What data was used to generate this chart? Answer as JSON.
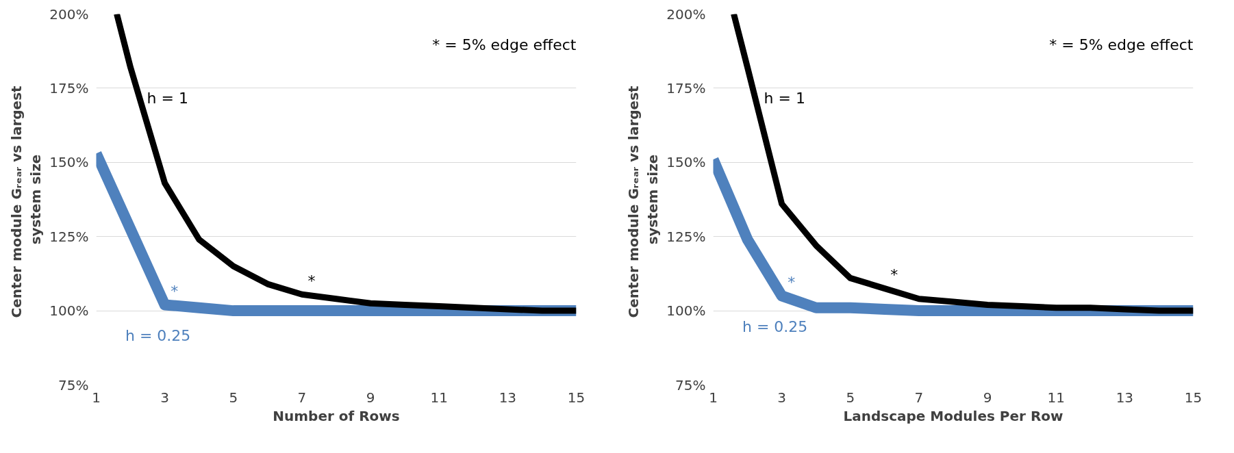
{
  "chart_data": [
    {
      "type": "line",
      "xlabel": "Number of Rows",
      "ylabel": "Center module Gᵣₑₐᵣ vs  largest\nsystem size",
      "xlim": [
        1,
        15
      ],
      "xticks": [
        1,
        3,
        5,
        7,
        9,
        11,
        13,
        15
      ],
      "ylim": [
        75,
        200
      ],
      "yticks": [
        {
          "value": 75,
          "label": "75%"
        },
        {
          "value": 100,
          "label": "100%"
        },
        {
          "value": 125,
          "label": "125%"
        },
        {
          "value": 150,
          "label": "150%"
        },
        {
          "value": 175,
          "label": "175%"
        },
        {
          "value": 200,
          "label": "200%"
        }
      ],
      "grid": "y",
      "line_style": "solid",
      "marker": "none",
      "series": [
        {
          "name": "h = 0.25",
          "color": "#4f81bd",
          "x": [
            1,
            2,
            3,
            4,
            5,
            6,
            7,
            8,
            9,
            10,
            11,
            12,
            13,
            14,
            15
          ],
          "values": [
            153,
            127.5,
            102,
            101,
            100,
            100,
            100,
            100,
            100,
            100,
            100,
            100,
            100,
            100,
            100
          ]
        },
        {
          "name": "h = 1",
          "color": "#000000",
          "x": [
            1.6,
            2,
            3,
            4,
            5,
            6,
            7,
            8,
            9,
            10,
            11,
            12,
            13,
            14,
            15
          ],
          "values": [
            200,
            182,
            143,
            124,
            115,
            109,
            105.5,
            104,
            102.5,
            102,
            101.5,
            101,
            100.5,
            100,
            100
          ]
        }
      ],
      "annotations": [
        "* = 5% edge effect",
        {
          "text": "*",
          "x": 3,
          "y": 102
        },
        {
          "text": "*",
          "x": 7,
          "y": 105.5
        }
      ]
    },
    {
      "type": "line",
      "xlabel": "Landscape Modules Per Row",
      "ylabel": "Center module  Gᵣₑₐᵣ vs largest\nsystem size",
      "xlim": [
        1,
        15
      ],
      "xticks": [
        1,
        3,
        5,
        7,
        9,
        11,
        13,
        15
      ],
      "ylim": [
        75,
        200
      ],
      "yticks": [
        {
          "value": 75,
          "label": "75%"
        },
        {
          "value": 100,
          "label": "100%"
        },
        {
          "value": 125,
          "label": "125%"
        },
        {
          "value": 150,
          "label": "150%"
        },
        {
          "value": 175,
          "label": "175%"
        },
        {
          "value": 200,
          "label": "200%"
        }
      ],
      "grid": "y",
      "line_style": "solid",
      "marker": "none",
      "series": [
        {
          "name": "h = 0.25",
          "color": "#4f81bd",
          "x": [
            1,
            2,
            3,
            4,
            5,
            6,
            7,
            8,
            9,
            10,
            11,
            12,
            13,
            14,
            15
          ],
          "values": [
            151,
            124,
            105,
            101,
            101,
            100.5,
            100,
            100,
            100,
            100,
            100,
            100,
            100,
            100,
            100
          ]
        },
        {
          "name": "h = 1",
          "color": "#000000",
          "x": [
            1.6,
            2,
            3,
            4,
            5,
            6,
            7,
            8,
            9,
            10,
            11,
            12,
            13,
            14,
            15
          ],
          "values": [
            200,
            182,
            136,
            122,
            111,
            107.5,
            104,
            103,
            102,
            101.5,
            101,
            101,
            100.5,
            100,
            100
          ]
        }
      ],
      "annotations": [
        "* = 5% edge effect",
        {
          "text": "*",
          "x": 3,
          "y": 105
        },
        {
          "text": "*",
          "x": 6,
          "y": 107.5
        }
      ]
    }
  ]
}
